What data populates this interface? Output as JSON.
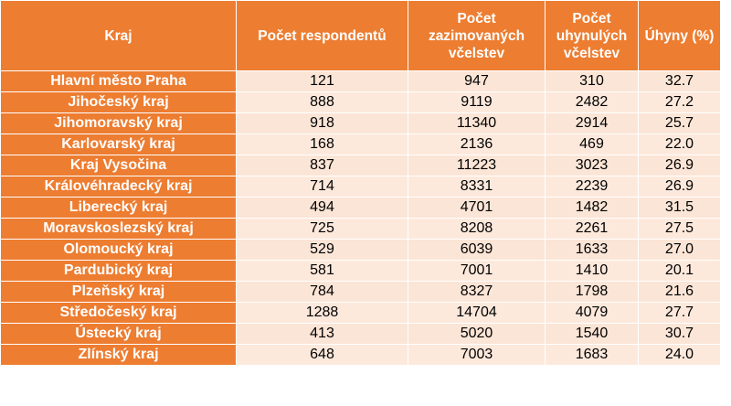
{
  "headers": [
    "Kraj",
    "Počet respondentů",
    "Počet zazimovaných včelstev",
    "Počet uhynulých včelstev",
    "Úhyny (%)"
  ],
  "rows": [
    [
      "Hlavní město Praha",
      "121",
      "947",
      "310",
      "32.7"
    ],
    [
      "Jihočeský kraj",
      "888",
      "9119",
      "2482",
      "27.2"
    ],
    [
      "Jihomoravský kraj",
      "918",
      "11340",
      "2914",
      "25.7"
    ],
    [
      "Karlovarský kraj",
      "168",
      "2136",
      "469",
      "22.0"
    ],
    [
      "Kraj Vysočina",
      "837",
      "11223",
      "3023",
      "26.9"
    ],
    [
      "Královéhradecký kraj",
      "714",
      "8331",
      "2239",
      "26.9"
    ],
    [
      "Liberecký kraj",
      "494",
      "4701",
      "1482",
      "31.5"
    ],
    [
      "Moravskoslezský kraj",
      "725",
      "8208",
      "2261",
      "27.5"
    ],
    [
      "Olomoucký kraj",
      "529",
      "6039",
      "1633",
      "27.0"
    ],
    [
      "Pardubický kraj",
      "581",
      "7001",
      "1410",
      "20.1"
    ],
    [
      "Plzeňský kraj",
      "784",
      "8327",
      "1798",
      "21.6"
    ],
    [
      "Středočeský kraj",
      "1288",
      "14704",
      "4079",
      "27.7"
    ],
    [
      "Ústecký kraj",
      "413",
      "5020",
      "1540",
      "30.7"
    ],
    [
      "Zlínský kraj",
      "648",
      "7003",
      "1683",
      "24.0"
    ]
  ],
  "colors": {
    "header_bg": "#ed7d31",
    "header_text": "#ffffff",
    "row_bg": "#fbe5d6"
  }
}
